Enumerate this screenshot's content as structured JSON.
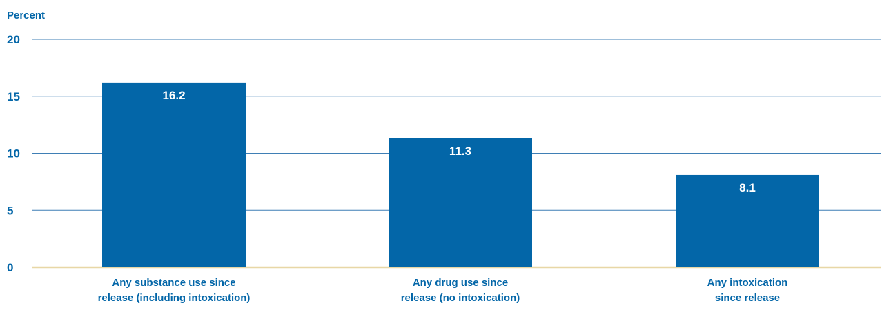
{
  "chart_data": {
    "type": "bar",
    "ylabel": "Percent",
    "ylim": [
      0,
      20
    ],
    "yticks": [
      0,
      5,
      10,
      15,
      20
    ],
    "grid": true,
    "categories": [
      [
        "Any substance use since",
        "release (including intoxication)"
      ],
      [
        "Any drug use since",
        "release (no intoxication)"
      ],
      [
        "Any intoxication",
        "since release"
      ]
    ],
    "values": [
      16.2,
      11.3,
      8.1
    ],
    "value_labels": [
      "16.2",
      "11.3",
      "8.1"
    ]
  },
  "colors": {
    "bar": "#0366a8",
    "text": "#0366a8",
    "gridline": "#3f7fb5",
    "baseline": "#e8d7a6",
    "value_label": "#ffffff"
  }
}
